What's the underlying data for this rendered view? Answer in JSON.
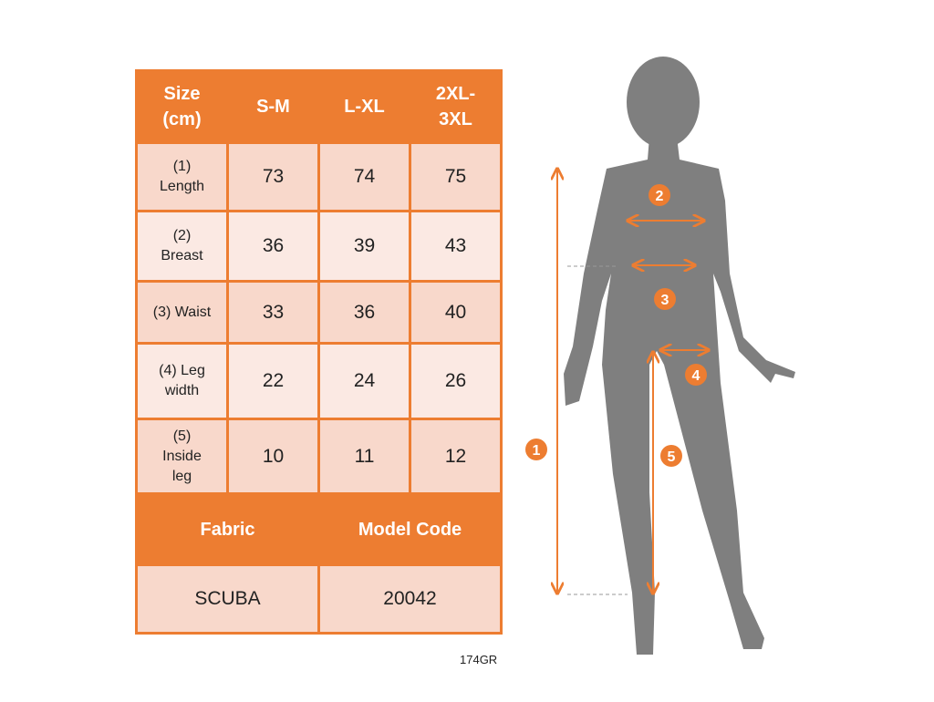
{
  "table": {
    "header": [
      "Size (cm)",
      "S-M",
      "L-XL",
      "2XL-3XL"
    ],
    "header_lines": [
      [
        "Size",
        "(cm)"
      ],
      [
        "S-M"
      ],
      [
        "L-XL"
      ],
      [
        "2XL-",
        "3XL"
      ]
    ],
    "rows": [
      {
        "label_lines": [
          "(1)",
          "Length"
        ],
        "values": [
          "73",
          "74",
          "75"
        ]
      },
      {
        "label_lines": [
          "(2)",
          "Breast"
        ],
        "values": [
          "36",
          "39",
          "43"
        ]
      },
      {
        "label_lines": [
          "(3) Waist"
        ],
        "values": [
          "33",
          "36",
          "40"
        ]
      },
      {
        "label_lines": [
          "(4) Leg",
          "width"
        ],
        "values": [
          "22",
          "24",
          "26"
        ]
      },
      {
        "label_lines": [
          "(5)",
          "Inside",
          "leg"
        ],
        "values": [
          "10",
          "11",
          "12"
        ]
      }
    ],
    "footer_headers": [
      "Fabric",
      "Model Code"
    ],
    "footer_values": [
      "SCUBA",
      "20042"
    ]
  },
  "model_code_label": "174GR",
  "figure": {
    "markers": [
      "1",
      "2",
      "3",
      "4",
      "5"
    ],
    "silhouette_color": "#7f7f7f",
    "accent_color": "#ed7d31"
  }
}
